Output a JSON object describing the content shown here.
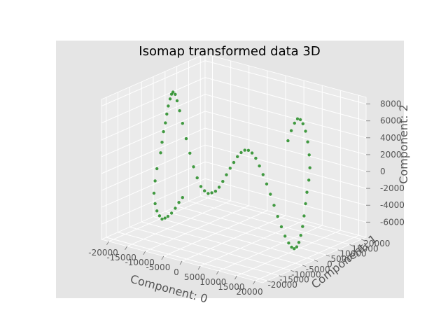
{
  "chart_data": {
    "type": "scatter",
    "projection": "3d",
    "title": "Isomap transformed data 3D",
    "xlabel": "Component: 0",
    "ylabel": "Component: 1",
    "zlabel": "Component: 2",
    "xlim": [
      -22000,
      22000
    ],
    "ylim": [
      -22000,
      22000
    ],
    "zlim": [
      -7800,
      8800
    ],
    "xticks": [
      -20000,
      -15000,
      -10000,
      -5000,
      0,
      5000,
      10000,
      15000,
      20000
    ],
    "yticks": [
      -20000,
      -15000,
      -10000,
      -5000,
      0,
      5000,
      10000,
      15000,
      20000
    ],
    "zticks": [
      -6000,
      -4000,
      -2000,
      0,
      2000,
      4000,
      6000,
      8000
    ],
    "grid": true,
    "colors": {
      "background": "#e5e5e5",
      "pane": "#ebebeb",
      "grid": "#ffffff",
      "marker": "#228b22"
    },
    "points": [
      {
        "x": -20000,
        "y": 0,
        "z": 0
      },
      {
        "x": -19600,
        "y": 0,
        "z": 1300
      },
      {
        "x": -19200,
        "y": 0,
        "z": 2600
      },
      {
        "x": -18700,
        "y": 0,
        "z": 3700
      },
      {
        "x": -18300,
        "y": 0,
        "z": 4800
      },
      {
        "x": -17900,
        "y": 0,
        "z": 5800
      },
      {
        "x": -17400,
        "y": 0,
        "z": 6700
      },
      {
        "x": -17000,
        "y": 0,
        "z": 7300
      },
      {
        "x": -16600,
        "y": 0,
        "z": 7600
      },
      {
        "x": -16000,
        "y": 0,
        "z": 7400
      },
      {
        "x": -15500,
        "y": 0,
        "z": 6700
      },
      {
        "x": -14800,
        "y": 0,
        "z": 5600
      },
      {
        "x": -14000,
        "y": 0,
        "z": 4200
      },
      {
        "x": -13000,
        "y": 0,
        "z": 2500
      },
      {
        "x": -12000,
        "y": 0,
        "z": 900
      },
      {
        "x": -11000,
        "y": 0,
        "z": -600
      },
      {
        "x": -10000,
        "y": 0,
        "z": -1800
      },
      {
        "x": -9000,
        "y": 0,
        "z": -2700
      },
      {
        "x": -8000,
        "y": 0,
        "z": -3100
      },
      {
        "x": -7000,
        "y": 0,
        "z": -3300
      },
      {
        "x": -6000,
        "y": 0,
        "z": -3100
      },
      {
        "x": -5000,
        "y": 0,
        "z": -2800
      },
      {
        "x": -4000,
        "y": 0,
        "z": -2200
      },
      {
        "x": -3000,
        "y": 0,
        "z": -1400
      },
      {
        "x": -2000,
        "y": 0,
        "z": -500
      },
      {
        "x": -1000,
        "y": 0,
        "z": 400
      },
      {
        "x": 0,
        "y": 0,
        "z": 1200
      },
      {
        "x": 1000,
        "y": 0,
        "z": 2000
      },
      {
        "x": 2000,
        "y": 0,
        "z": 2600
      },
      {
        "x": 3000,
        "y": 0,
        "z": 3000
      },
      {
        "x": 4000,
        "y": 0,
        "z": 3100
      },
      {
        "x": 5000,
        "y": 0,
        "z": 2900
      },
      {
        "x": 6000,
        "y": 0,
        "z": 2400
      },
      {
        "x": 7000,
        "y": 0,
        "z": 1600
      },
      {
        "x": 8000,
        "y": 0,
        "z": 700
      },
      {
        "x": 9000,
        "y": 0,
        "z": -300
      },
      {
        "x": 10000,
        "y": 0,
        "z": -1400
      },
      {
        "x": 11000,
        "y": 0,
        "z": -2600
      },
      {
        "x": 12000,
        "y": 0,
        "z": -3800
      },
      {
        "x": 13000,
        "y": 0,
        "z": -4900
      },
      {
        "x": 14000,
        "y": 0,
        "z": -5900
      },
      {
        "x": 15000,
        "y": 0,
        "z": -6600
      },
      {
        "x": 15800,
        "y": 0,
        "z": -7000
      },
      {
        "x": 16500,
        "y": 0,
        "z": -7100
      },
      {
        "x": 17200,
        "y": 0,
        "z": -6800
      },
      {
        "x": 17800,
        "y": 0,
        "z": -6200
      },
      {
        "x": 18300,
        "y": 0,
        "z": -5300
      },
      {
        "x": 18800,
        "y": 0,
        "z": -4200
      },
      {
        "x": 19200,
        "y": 0,
        "z": -2900
      },
      {
        "x": 19600,
        "y": 0,
        "z": -1400
      },
      {
        "x": 20000,
        "y": 0,
        "z": 0
      },
      {
        "x": -21000,
        "y": 0,
        "z": -2000
      },
      {
        "x": -21500,
        "y": 0,
        "z": -3500
      },
      {
        "x": -21800,
        "y": 0,
        "z": -5000
      },
      {
        "x": -21500,
        "y": 0,
        "z": -6200
      },
      {
        "x": -21000,
        "y": 0,
        "z": -7000
      },
      {
        "x": -20300,
        "y": 0,
        "z": -7500
      },
      {
        "x": -19600,
        "y": 0,
        "z": -7800
      },
      {
        "x": -18800,
        "y": 0,
        "z": -7600
      },
      {
        "x": -18000,
        "y": 0,
        "z": -7300
      },
      {
        "x": -17000,
        "y": 0,
        "z": -6800
      },
      {
        "x": -16000,
        "y": 0,
        "z": -6100
      },
      {
        "x": -15000,
        "y": 0,
        "z": -5300
      },
      {
        "x": -14000,
        "y": 0,
        "z": -4600
      },
      {
        "x": 20500,
        "y": 0,
        "z": 1500
      },
      {
        "x": 20800,
        "y": 0,
        "z": 3000
      },
      {
        "x": 20600,
        "y": 0,
        "z": 4500
      },
      {
        "x": 20200,
        "y": 0,
        "z": 6000
      },
      {
        "x": 19600,
        "y": 0,
        "z": 7200
      },
      {
        "x": 18900,
        "y": 0,
        "z": 8000
      },
      {
        "x": 18200,
        "y": 0,
        "z": 8400
      },
      {
        "x": 17400,
        "y": 0,
        "z": 8400
      },
      {
        "x": 16600,
        "y": 0,
        "z": 7800
      },
      {
        "x": 15700,
        "y": 0,
        "z": 6800
      },
      {
        "x": 14800,
        "y": 0,
        "z": 5500
      }
    ]
  }
}
